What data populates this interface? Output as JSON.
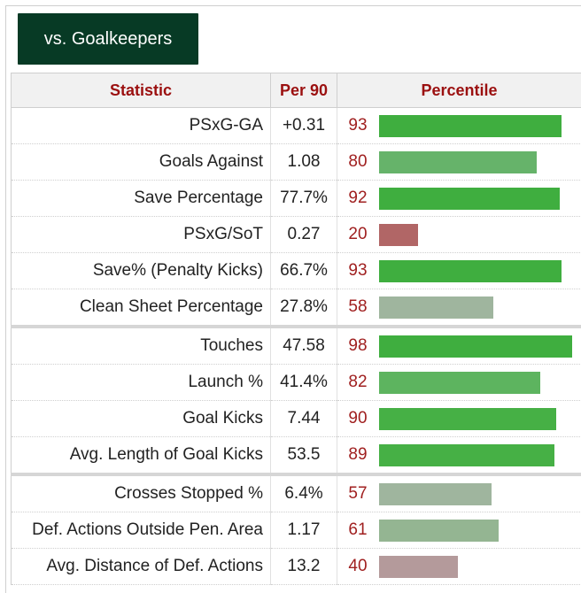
{
  "tab": {
    "label": "vs. Goalkeepers"
  },
  "table": {
    "headers": {
      "statistic": "Statistic",
      "per90": "Per 90",
      "percentile": "Percentile"
    },
    "colors": {
      "high": "#3fae3f",
      "mid": "#66b36a",
      "neutral": "#9fb59e",
      "low": "#b16666",
      "lowmid": "#b49a9b"
    },
    "rows": [
      {
        "statistic": "PSxG-GA",
        "per90": "+0.31",
        "percentile": "93",
        "fraction": 0.93,
        "color": "#3fae3f"
      },
      {
        "statistic": "Goals Against",
        "per90": "1.08",
        "percentile": "80",
        "fraction": 0.8,
        "color": "#66b36a"
      },
      {
        "statistic": "Save Percentage",
        "per90": "77.7%",
        "percentile": "92",
        "fraction": 0.92,
        "color": "#3fae3f"
      },
      {
        "statistic": "PSxG/SoT",
        "per90": "0.27",
        "percentile": "20",
        "fraction": 0.2,
        "color": "#b16666"
      },
      {
        "statistic": "Save% (Penalty Kicks)",
        "per90": "66.7%",
        "percentile": "93",
        "fraction": 0.93,
        "color": "#3fae3f"
      },
      {
        "statistic": "Clean Sheet Percentage",
        "per90": "27.8%",
        "percentile": "58",
        "fraction": 0.58,
        "color": "#9fb59e"
      },
      {
        "statistic": "Touches",
        "per90": "47.58",
        "percentile": "98",
        "fraction": 0.98,
        "color": "#3fae3f"
      },
      {
        "statistic": "Launch %",
        "per90": "41.4%",
        "percentile": "82",
        "fraction": 0.82,
        "color": "#5db45f"
      },
      {
        "statistic": "Goal Kicks",
        "per90": "7.44",
        "percentile": "90",
        "fraction": 0.9,
        "color": "#46b045"
      },
      {
        "statistic": "Avg. Length of Goal Kicks",
        "per90": "53.5",
        "percentile": "89",
        "fraction": 0.89,
        "color": "#46b045"
      },
      {
        "statistic": "Crosses Stopped %",
        "per90": "6.4%",
        "percentile": "57",
        "fraction": 0.57,
        "color": "#9fb59e"
      },
      {
        "statistic": "Def. Actions Outside Pen. Area",
        "per90": "1.17",
        "percentile": "61",
        "fraction": 0.61,
        "color": "#94b592"
      },
      {
        "statistic": "Avg. Distance of Def. Actions",
        "per90": "13.2",
        "percentile": "40",
        "fraction": 0.4,
        "color": "#b49a9b"
      }
    ]
  }
}
